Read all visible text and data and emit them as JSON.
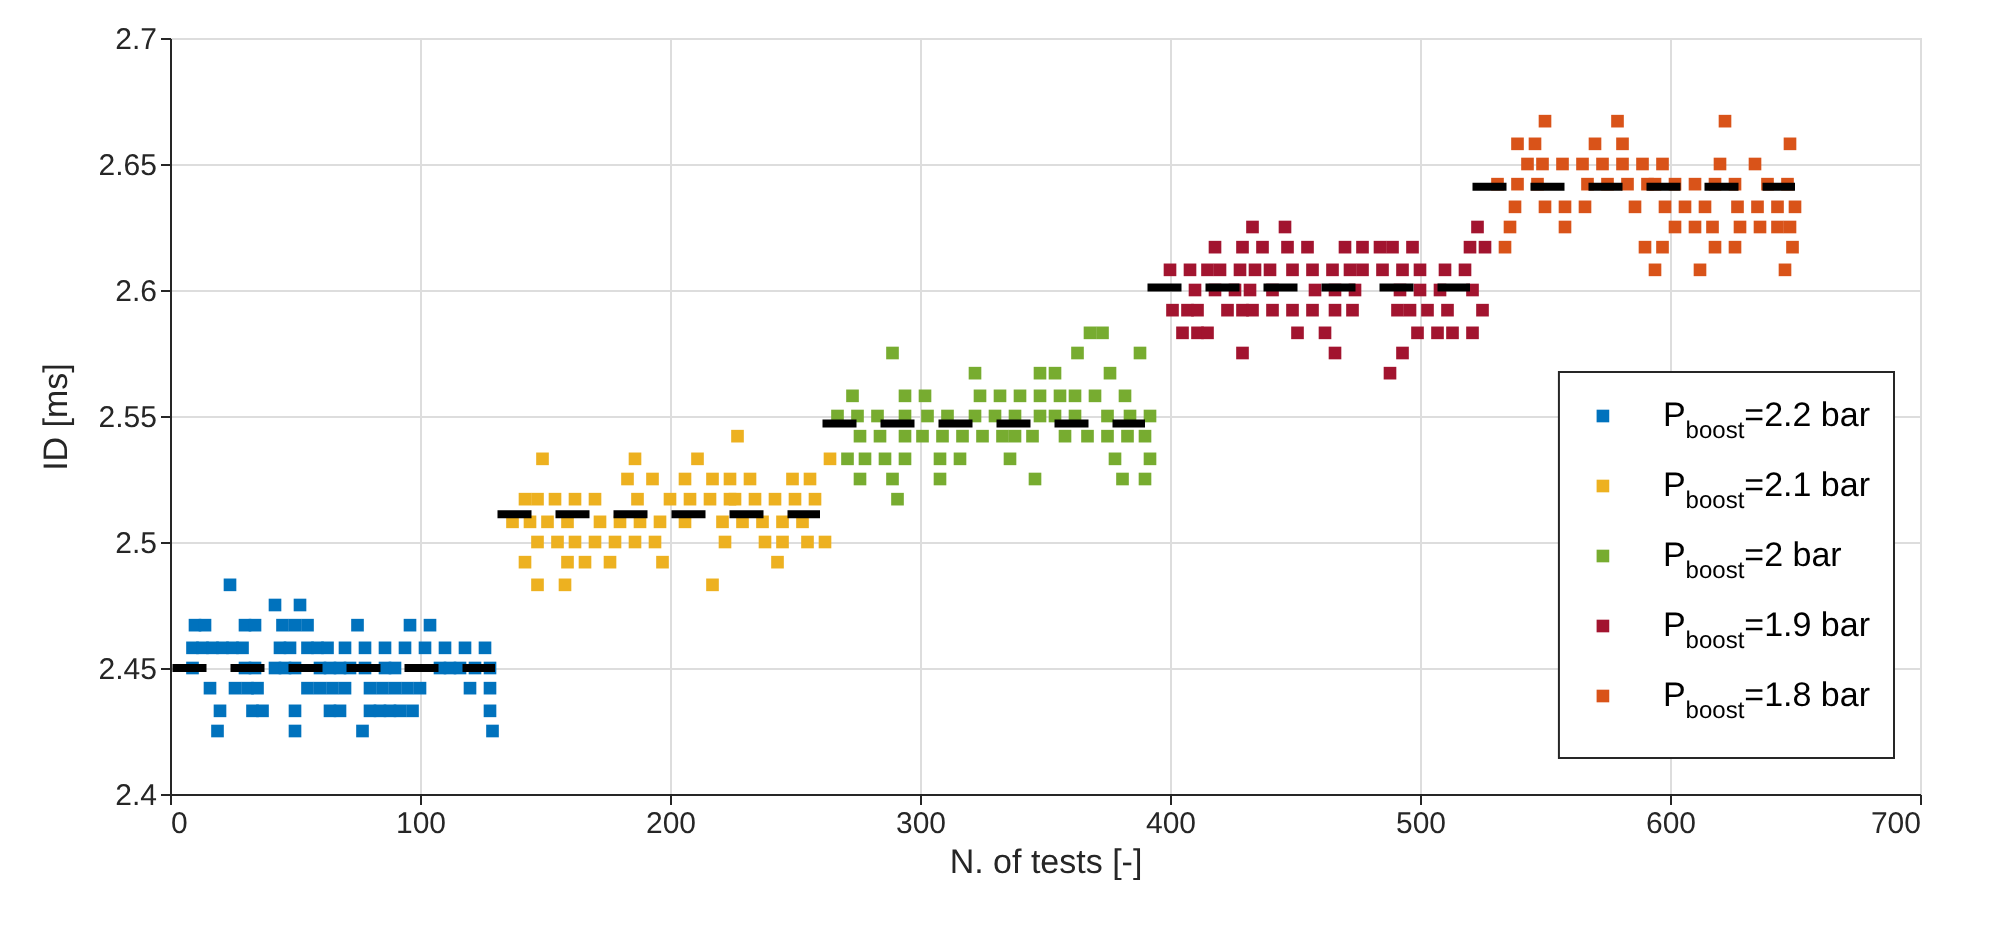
{
  "chart_data": {
    "type": "scatter",
    "xlabel": "N. of tests [-]",
    "ylabel": "ID [ms]",
    "xlim": [
      0,
      700
    ],
    "xticks": [
      0,
      100,
      200,
      300,
      400,
      500,
      600,
      700
    ],
    "ylim": [
      2.4,
      2.7
    ],
    "yticks": [
      2.4,
      2.45,
      2.5,
      2.55,
      2.6,
      2.65,
      2.7
    ],
    "grid": true,
    "legend": "bottom right",
    "marker": "square",
    "series": [
      {
        "name": "P$_{boost}$=2.2 bar",
        "color": "#0072bd",
        "x": [
          24,
          42,
          52,
          10,
          14,
          30,
          34,
          45,
          50,
          55,
          75,
          96,
          104,
          9,
          13,
          17,
          21,
          25,
          29,
          44,
          48,
          55,
          59,
          63,
          70,
          78,
          86,
          94,
          102,
          110,
          118,
          126,
          9,
          30,
          34,
          42,
          46,
          50,
          60,
          64,
          68,
          72,
          78,
          86,
          90,
          108,
          112,
          116,
          122,
          128,
          16,
          26,
          31,
          35,
          55,
          60,
          65,
          70,
          80,
          85,
          90,
          95,
          100,
          120,
          128,
          20,
          33,
          37,
          50,
          64,
          68,
          80,
          84,
          88,
          92,
          97,
          128,
          19,
          50,
          77,
          129
        ],
        "values": [
          2.483,
          2.475,
          2.475,
          2.467,
          2.467,
          2.467,
          2.467,
          2.467,
          2.467,
          2.467,
          2.467,
          2.467,
          2.467,
          2.458,
          2.458,
          2.458,
          2.458,
          2.458,
          2.458,
          2.458,
          2.458,
          2.458,
          2.458,
          2.458,
          2.458,
          2.458,
          2.458,
          2.458,
          2.458,
          2.458,
          2.458,
          2.458,
          2.45,
          2.45,
          2.45,
          2.45,
          2.45,
          2.45,
          2.45,
          2.45,
          2.45,
          2.45,
          2.45,
          2.45,
          2.45,
          2.45,
          2.45,
          2.45,
          2.45,
          2.45,
          2.442,
          2.442,
          2.442,
          2.442,
          2.442,
          2.442,
          2.442,
          2.442,
          2.442,
          2.442,
          2.442,
          2.442,
          2.442,
          2.442,
          2.442,
          2.433,
          2.433,
          2.433,
          2.433,
          2.433,
          2.433,
          2.433,
          2.433,
          2.433,
          2.433,
          2.433,
          2.433,
          2.425,
          2.425,
          2.425,
          2.425
        ]
      },
      {
        "name": "P$_{boost}$=2.1 bar",
        "color": "#edb120",
        "x": [
          227,
          149,
          186,
          211,
          264,
          183,
          193,
          206,
          217,
          224,
          232,
          249,
          256,
          142,
          147,
          154,
          162,
          170,
          187,
          200,
          208,
          216,
          224,
          226,
          234,
          242,
          250,
          258,
          137,
          144,
          151,
          159,
          172,
          180,
          188,
          196,
          206,
          221,
          229,
          237,
          245,
          253,
          147,
          155,
          162,
          170,
          178,
          186,
          194,
          222,
          238,
          245,
          255,
          262,
          142,
          159,
          166,
          176,
          197,
          243,
          147,
          158,
          217
        ],
        "values": [
          2.542,
          2.533,
          2.533,
          2.533,
          2.533,
          2.525,
          2.525,
          2.525,
          2.525,
          2.525,
          2.525,
          2.525,
          2.525,
          2.517,
          2.517,
          2.517,
          2.517,
          2.517,
          2.517,
          2.517,
          2.517,
          2.517,
          2.517,
          2.517,
          2.517,
          2.517,
          2.517,
          2.517,
          2.508,
          2.508,
          2.508,
          2.508,
          2.508,
          2.508,
          2.508,
          2.508,
          2.508,
          2.508,
          2.508,
          2.508,
          2.508,
          2.508,
          2.5,
          2.5,
          2.5,
          2.5,
          2.5,
          2.5,
          2.5,
          2.5,
          2.5,
          2.5,
          2.5,
          2.5,
          2.492,
          2.492,
          2.492,
          2.492,
          2.492,
          2.492,
          2.483,
          2.483,
          2.483
        ]
      },
      {
        "name": "P$_{boost}$=2 bar",
        "color": "#77ac30",
        "x": [
          368,
          373,
          289,
          363,
          388,
          322,
          348,
          354,
          376,
          273,
          294,
          302,
          324,
          332,
          340,
          348,
          356,
          362,
          370,
          382,
          267,
          275,
          283,
          294,
          303,
          311,
          322,
          330,
          338,
          348,
          354,
          362,
          375,
          384,
          392,
          276,
          284,
          294,
          301,
          309,
          317,
          325,
          333,
          338,
          345,
          358,
          367,
          375,
          383,
          390,
          271,
          278,
          286,
          294,
          308,
          316,
          336,
          378,
          392,
          276,
          289,
          308,
          346,
          381,
          390,
          291
        ],
        "values": [
          2.583,
          2.583,
          2.575,
          2.575,
          2.575,
          2.567,
          2.567,
          2.567,
          2.567,
          2.558,
          2.558,
          2.558,
          2.558,
          2.558,
          2.558,
          2.558,
          2.558,
          2.558,
          2.558,
          2.558,
          2.55,
          2.55,
          2.55,
          2.55,
          2.55,
          2.55,
          2.55,
          2.55,
          2.55,
          2.55,
          2.55,
          2.55,
          2.55,
          2.55,
          2.55,
          2.542,
          2.542,
          2.542,
          2.542,
          2.542,
          2.542,
          2.542,
          2.542,
          2.542,
          2.542,
          2.542,
          2.542,
          2.542,
          2.542,
          2.542,
          2.533,
          2.533,
          2.533,
          2.533,
          2.533,
          2.533,
          2.533,
          2.533,
          2.533,
          2.525,
          2.525,
          2.525,
          2.525,
          2.525,
          2.525,
          2.517
        ]
      },
      {
        "name": "P$_{boost}$=1.9 bar",
        "color": "#a2142f",
        "x": [
          433,
          446,
          523,
          418,
          429,
          437,
          447,
          455,
          470,
          477,
          484,
          489,
          497,
          520,
          526,
          400,
          408,
          415,
          420,
          428,
          434,
          440,
          449,
          457,
          465,
          472,
          477,
          485,
          493,
          500,
          510,
          518,
          410,
          418,
          426,
          432,
          441,
          458,
          466,
          474,
          492,
          500,
          508,
          521,
          401,
          407,
          411,
          423,
          429,
          433,
          441,
          449,
          457,
          466,
          473,
          491,
          496,
          503,
          511,
          525,
          405,
          411,
          415,
          451,
          462,
          499,
          507,
          513,
          521,
          429,
          466,
          493,
          488
        ],
        "values": [
          2.625,
          2.625,
          2.625,
          2.617,
          2.617,
          2.617,
          2.617,
          2.617,
          2.617,
          2.617,
          2.617,
          2.617,
          2.617,
          2.617,
          2.617,
          2.608,
          2.608,
          2.608,
          2.608,
          2.608,
          2.608,
          2.608,
          2.608,
          2.608,
          2.608,
          2.608,
          2.608,
          2.608,
          2.608,
          2.608,
          2.608,
          2.608,
          2.6,
          2.6,
          2.6,
          2.6,
          2.6,
          2.6,
          2.6,
          2.6,
          2.6,
          2.6,
          2.6,
          2.6,
          2.592,
          2.592,
          2.592,
          2.592,
          2.592,
          2.592,
          2.592,
          2.592,
          2.592,
          2.592,
          2.592,
          2.592,
          2.592,
          2.592,
          2.592,
          2.592,
          2.583,
          2.583,
          2.583,
          2.583,
          2.583,
          2.583,
          2.583,
          2.583,
          2.583,
          2.575,
          2.575,
          2.575,
          2.567
        ]
      },
      {
        "name": "P$_{boost}$=1.8 bar",
        "color": "#d95319",
        "x": [
          550,
          579,
          622,
          539,
          546,
          570,
          581,
          648,
          543,
          549,
          557,
          565,
          573,
          581,
          589,
          597,
          620,
          634,
          531,
          539,
          547,
          567,
          575,
          583,
          591,
          594,
          602,
          610,
          618,
          626,
          639,
          647,
          538,
          550,
          558,
          566,
          586,
          598,
          606,
          614,
          627,
          635,
          643,
          650,
          536,
          558,
          602,
          610,
          617,
          628,
          636,
          643,
          648,
          534,
          590,
          597,
          618,
          626,
          649,
          594,
          612,
          646
        ],
        "values": [
          2.667,
          2.667,
          2.667,
          2.658,
          2.658,
          2.658,
          2.658,
          2.658,
          2.65,
          2.65,
          2.65,
          2.65,
          2.65,
          2.65,
          2.65,
          2.65,
          2.65,
          2.65,
          2.642,
          2.642,
          2.642,
          2.642,
          2.642,
          2.642,
          2.642,
          2.642,
          2.642,
          2.642,
          2.642,
          2.642,
          2.642,
          2.642,
          2.633,
          2.633,
          2.633,
          2.633,
          2.633,
          2.633,
          2.633,
          2.633,
          2.633,
          2.633,
          2.633,
          2.633,
          2.625,
          2.625,
          2.625,
          2.625,
          2.625,
          2.625,
          2.625,
          2.625,
          2.625,
          2.617,
          2.617,
          2.617,
          2.617,
          2.617,
          2.617,
          2.608,
          2.608,
          2.608
        ]
      },
      {
        "type": "line",
        "marker": "none",
        "color": "#000000",
        "line_style": "dashed",
        "x": [
          1,
          130
        ],
        "values": [
          2.45,
          2.45
        ]
      },
      {
        "type": "line",
        "marker": "none",
        "color": "#000000",
        "line_style": "dashed",
        "x": [
          131,
          260
        ],
        "values": [
          2.511,
          2.511
        ]
      },
      {
        "type": "line",
        "marker": "none",
        "color": "#000000",
        "line_style": "dashed",
        "x": [
          261,
          390
        ],
        "values": [
          2.547,
          2.547
        ]
      },
      {
        "type": "line",
        "marker": "none",
        "color": "#000000",
        "line_style": "dashed",
        "x": [
          391,
          520
        ],
        "values": [
          2.601,
          2.601
        ]
      },
      {
        "type": "line",
        "marker": "none",
        "color": "#000000",
        "line_style": "dashed",
        "x": [
          521,
          650
        ],
        "values": [
          2.641,
          2.641
        ]
      }
    ]
  }
}
